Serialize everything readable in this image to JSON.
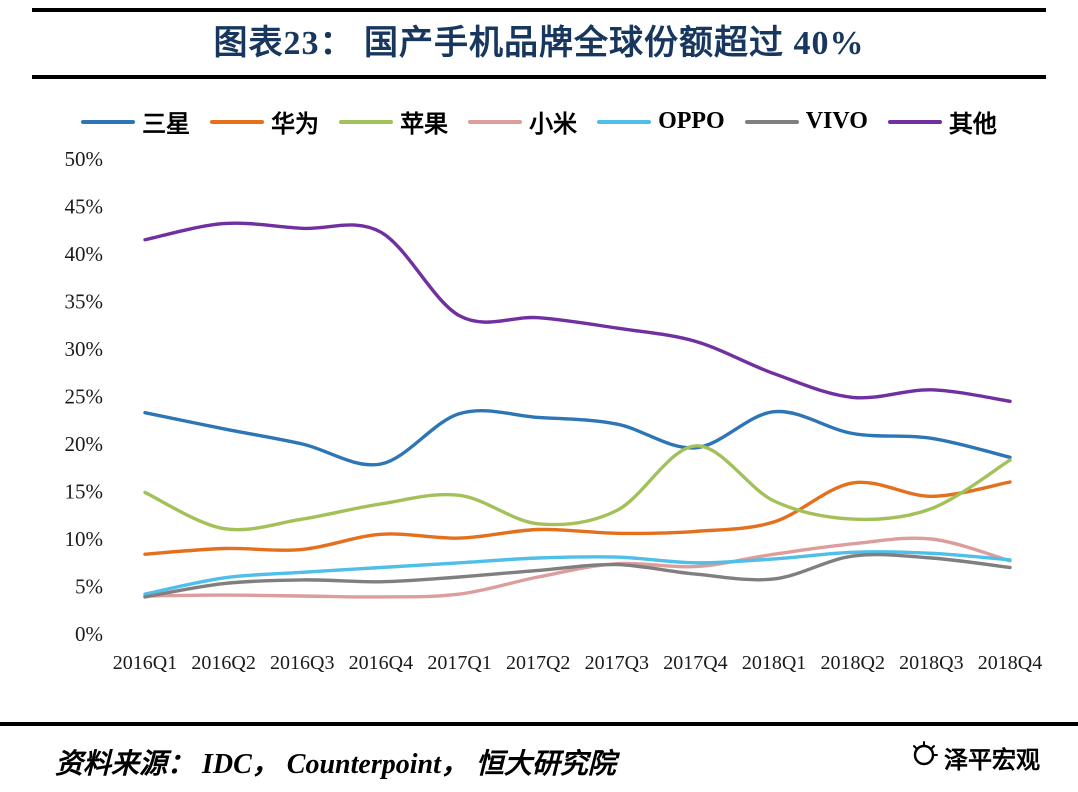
{
  "header": {
    "title": "图表23：  国产手机品牌全球份额超过 40%"
  },
  "footer": {
    "source": "资料来源： IDC， Counterpoint， 恒大研究院",
    "brand": "泽平宏观"
  },
  "chart_data": {
    "type": "line",
    "title": "图表23：  国产手机品牌全球份额超过 40%",
    "xlabel": "",
    "ylabel": "",
    "ylim": [
      0,
      50
    ],
    "ytick_step": 5,
    "ytick_labels": [
      "0%",
      "5%",
      "10%",
      "15%",
      "20%",
      "25%",
      "30%",
      "35%",
      "40%",
      "45%",
      "50%"
    ],
    "grid": false,
    "smooth": true,
    "legend_position": "top",
    "categories": [
      "2016Q1",
      "2016Q2",
      "2016Q3",
      "2016Q4",
      "2017Q1",
      "2017Q2",
      "2017Q3",
      "2017Q4",
      "2018Q1",
      "2018Q2",
      "2018Q3",
      "2018Q4"
    ],
    "series": [
      {
        "name": "三星",
        "color": "#2E75B6",
        "values": [
          23.3,
          21.6,
          20.0,
          17.9,
          23.2,
          22.8,
          22.1,
          19.6,
          23.4,
          21.1,
          20.6,
          18.6
        ]
      },
      {
        "name": "华为",
        "color": "#E4701E",
        "values": [
          8.4,
          9.0,
          8.9,
          10.5,
          10.1,
          11.0,
          10.6,
          10.8,
          11.8,
          15.9,
          14.5,
          16.0
        ]
      },
      {
        "name": "苹果",
        "color": "#A2C158",
        "values": [
          14.9,
          11.1,
          12.1,
          13.7,
          14.6,
          11.6,
          13.0,
          19.8,
          14.0,
          12.1,
          13.2,
          18.3
        ]
      },
      {
        "name": "小米",
        "color": "#DC9E9C",
        "values": [
          4.0,
          4.1,
          4.0,
          3.9,
          4.2,
          6.0,
          7.4,
          7.1,
          8.4,
          9.5,
          10.0,
          7.7
        ]
      },
      {
        "name": "OPPO",
        "color": "#4FBEE8",
        "values": [
          4.2,
          5.9,
          6.5,
          7.0,
          7.5,
          8.0,
          8.1,
          7.5,
          7.9,
          8.6,
          8.5,
          7.8
        ]
      },
      {
        "name": "VIVO",
        "color": "#7F7F7F",
        "values": [
          3.9,
          5.3,
          5.7,
          5.5,
          6.0,
          6.7,
          7.3,
          6.3,
          5.8,
          8.2,
          8.0,
          7.0
        ]
      },
      {
        "name": "其他",
        "color": "#7030A0",
        "values": [
          41.5,
          43.2,
          42.7,
          42.3,
          33.5,
          33.3,
          32.2,
          30.8,
          27.4,
          24.9,
          25.7,
          24.5
        ]
      }
    ]
  }
}
